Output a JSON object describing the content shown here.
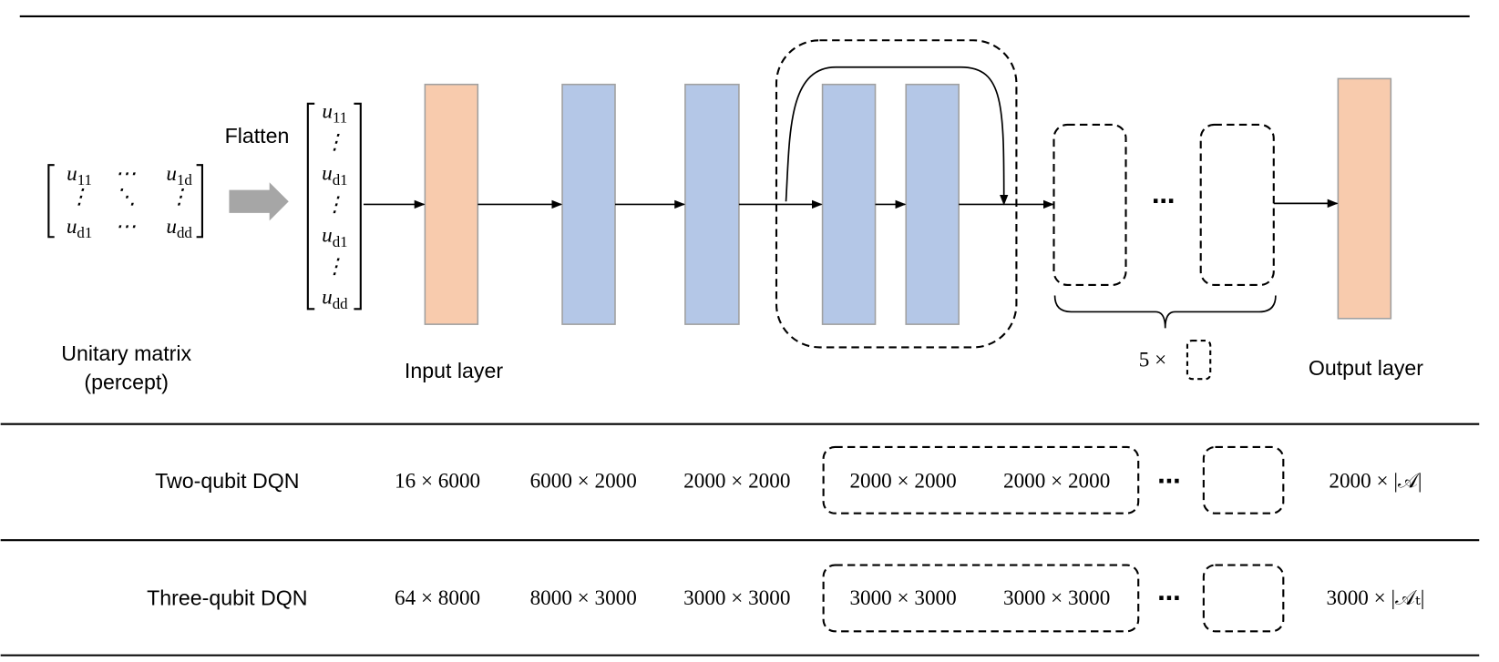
{
  "diagram": {
    "percept": {
      "matrix": [
        [
          {
            "b": "u",
            "s": "11"
          },
          "⋯",
          {
            "b": "u",
            "s": "1d"
          }
        ],
        [
          "⋮",
          "⋱",
          "⋮"
        ],
        [
          {
            "b": "u",
            "s": "d1"
          },
          "⋯",
          {
            "b": "u",
            "s": "dd"
          }
        ]
      ],
      "label": [
        "Unitary matrix",
        "(percept)"
      ]
    },
    "flatten": "Flatten",
    "vector": [
      {
        "b": "u",
        "s": "11"
      },
      "⋮",
      {
        "b": "u",
        "s": "d1"
      },
      "⋮",
      {
        "b": "u",
        "s": "d1"
      },
      "⋮",
      {
        "b": "u",
        "s": "dd"
      }
    ],
    "input_label": "Input layer",
    "output_label": "Output layer",
    "ellipsis": "⋯",
    "repeat": "5 ×"
  },
  "table": {
    "rows": [
      [
        "Two-qubit DQN",
        "16 × 6000",
        "6000 × 2000",
        "2000 × 2000",
        "2000 × 2000",
        "2000 × 2000",
        "⋯",
        "2000 × |𝒜|"
      ],
      [
        "Three-qubit DQN",
        "64 × 8000",
        "8000 × 3000",
        "3000 × 3000",
        "3000 × 3000",
        "3000 × 3000",
        "⋯",
        "3000 × |𝒜ₜ|"
      ]
    ]
  }
}
